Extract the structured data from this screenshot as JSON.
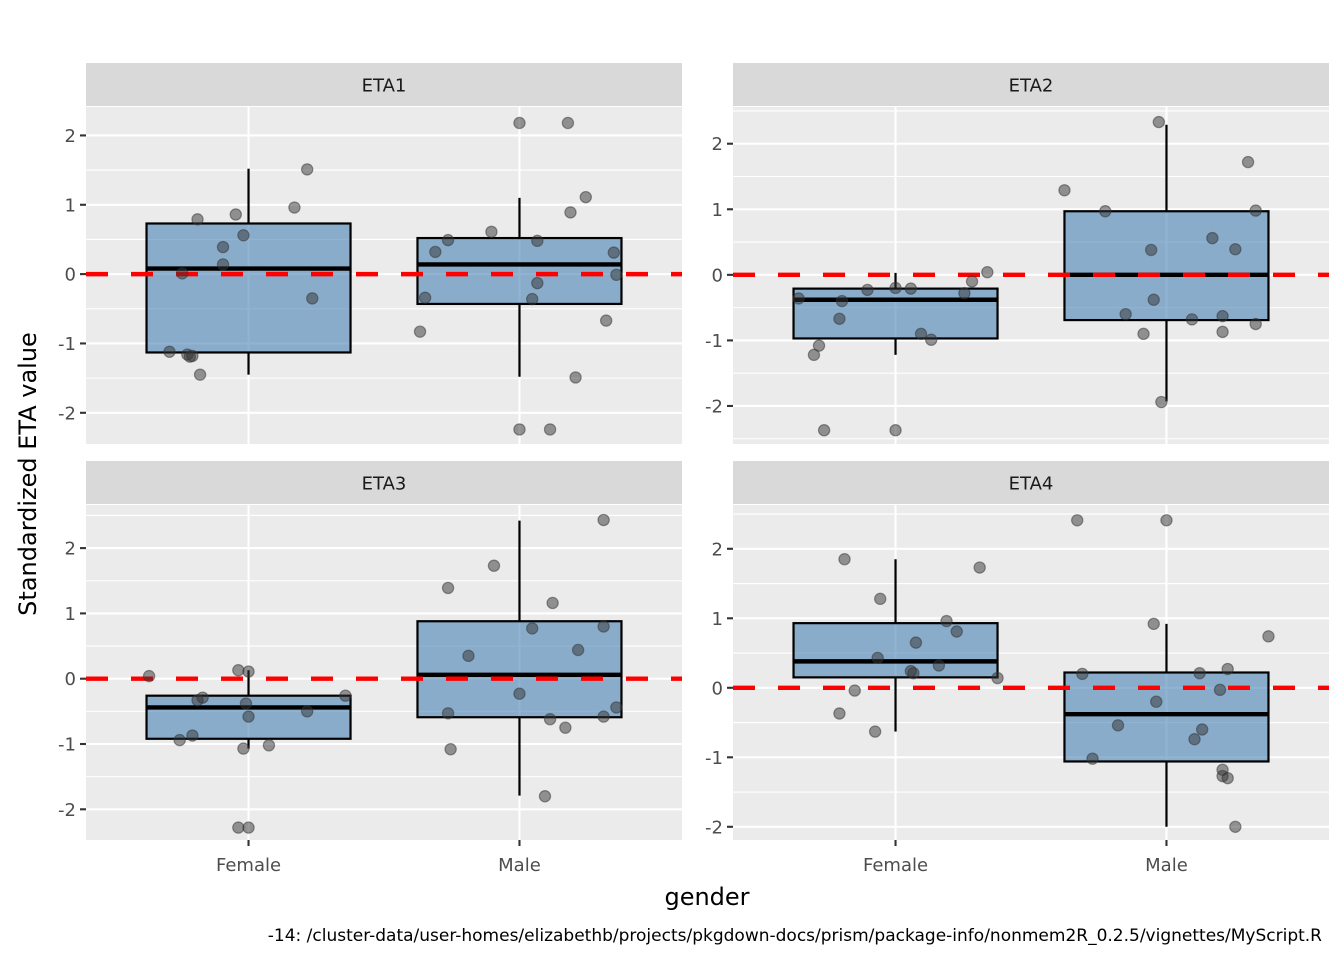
{
  "chart_data": {
    "type": "boxplot",
    "title": "",
    "xlabel": "gender",
    "ylabel": "Standardized ETA value",
    "caption": "-14: /cluster-data/user-homes/elizabethb/projects/pkgdown-docs/prism/package-info/nonmem2R_0.2.5/vignettes/MyScript.R",
    "categories": [
      "Female",
      "Male"
    ],
    "reference_line": {
      "y": 0,
      "color": "#ff0000",
      "style": "dashed"
    },
    "colors": {
      "panel_bg": "#ebebeb",
      "strip_bg": "#d9d9d9",
      "grid": "#ffffff",
      "box_fill": "#4682b4",
      "box_fill_opacity": 0.6,
      "box_stroke": "#000000",
      "point": "#333333",
      "point_opacity": 0.5,
      "ref_line": "#ff0000"
    },
    "facets": [
      {
        "name": "ETA1",
        "ylim": [
          -2.45,
          2.41
        ],
        "yticks": [
          -2,
          -1,
          0,
          1,
          2
        ],
        "groups": [
          {
            "category": "Female",
            "box": {
              "lower_whisker": -1.45,
              "q1": -1.13,
              "median": 0.08,
              "q3": 0.73,
              "upper_whisker": 1.52
            },
            "points": [
              [
                -0.31,
                -1.12
              ],
              [
                -0.26,
                0.01
              ],
              [
                -0.24,
                -1.16
              ],
              [
                -0.23,
                -1.19
              ],
              [
                -0.22,
                -1.18
              ],
              [
                -0.2,
                0.79
              ],
              [
                -0.19,
                -1.45
              ],
              [
                -0.1,
                0.39
              ],
              [
                -0.1,
                0.14
              ],
              [
                -0.05,
                0.86
              ],
              [
                -0.02,
                0.56
              ],
              [
                0.18,
                0.96
              ],
              [
                0.23,
                1.51
              ],
              [
                0.25,
                -0.35
              ]
            ]
          },
          {
            "category": "Male",
            "box": {
              "lower_whisker": -1.48,
              "q1": -0.43,
              "median": 0.14,
              "q3": 0.52,
              "upper_whisker": 1.1
            },
            "points": [
              [
                -0.39,
                -0.83
              ],
              [
                -0.37,
                -0.34
              ],
              [
                -0.33,
                0.32
              ],
              [
                -0.28,
                0.49
              ],
              [
                -0.11,
                0.61
              ],
              [
                0.0,
                2.18
              ],
              [
                0.0,
                -2.24
              ],
              [
                0.05,
                -0.36
              ],
              [
                0.07,
                0.48
              ],
              [
                0.07,
                -0.13
              ],
              [
                0.12,
                -2.24
              ],
              [
                0.19,
                2.18
              ],
              [
                0.2,
                0.89
              ],
              [
                0.22,
                -1.49
              ],
              [
                0.26,
                1.11
              ],
              [
                0.34,
                -0.67
              ],
              [
                0.37,
                0.31
              ],
              [
                0.38,
                -0.01
              ]
            ]
          }
        ]
      },
      {
        "name": "ETA2",
        "ylim": [
          -2.58,
          2.56
        ],
        "yticks": [
          -2,
          -1,
          0,
          1,
          2
        ],
        "groups": [
          {
            "category": "Female",
            "box": {
              "lower_whisker": -1.22,
              "q1": -0.97,
              "median": -0.38,
              "q3": -0.21,
              "upper_whisker": 0.03
            },
            "points": [
              [
                -0.38,
                -0.36
              ],
              [
                -0.32,
                -1.22
              ],
              [
                -0.3,
                -1.08
              ],
              [
                -0.28,
                -2.37
              ],
              [
                -0.22,
                -0.67
              ],
              [
                -0.21,
                -0.4
              ],
              [
                -0.11,
                -0.23
              ],
              [
                0.0,
                -0.2
              ],
              [
                0.0,
                -2.37
              ],
              [
                0.06,
                -0.21
              ],
              [
                0.1,
                -0.9
              ],
              [
                0.14,
                -0.99
              ],
              [
                0.27,
                -0.28
              ],
              [
                0.3,
                -0.1
              ],
              [
                0.36,
                0.04
              ]
            ]
          },
          {
            "category": "Male",
            "box": {
              "lower_whisker": -1.93,
              "q1": -0.69,
              "median": 0.0,
              "q3": 0.97,
              "upper_whisker": 2.29
            },
            "points": [
              [
                -0.4,
                1.29
              ],
              [
                -0.24,
                0.97
              ],
              [
                -0.16,
                -0.6
              ],
              [
                -0.09,
                -0.9
              ],
              [
                -0.06,
                0.38
              ],
              [
                -0.05,
                -0.38
              ],
              [
                -0.03,
                2.33
              ],
              [
                -0.02,
                -1.94
              ],
              [
                0.1,
                -0.68
              ],
              [
                0.18,
                0.56
              ],
              [
                0.22,
                -0.87
              ],
              [
                0.22,
                -0.63
              ],
              [
                0.27,
                0.39
              ],
              [
                0.32,
                1.72
              ],
              [
                0.35,
                0.98
              ],
              [
                0.35,
                -0.75
              ]
            ]
          }
        ]
      },
      {
        "name": "ETA3",
        "ylim": [
          -2.47,
          2.66
        ],
        "yticks": [
          -2,
          -1,
          0,
          1,
          2
        ],
        "groups": [
          {
            "category": "Female",
            "box": {
              "lower_whisker": -1.07,
              "q1": -0.92,
              "median": -0.44,
              "q3": -0.26,
              "upper_whisker": 0.13
            },
            "points": [
              [
                -0.39,
                0.04
              ],
              [
                -0.27,
                -0.94
              ],
              [
                -0.22,
                -0.87
              ],
              [
                -0.2,
                -0.33
              ],
              [
                -0.18,
                -0.29
              ],
              [
                -0.04,
                0.13
              ],
              [
                0.0,
                0.11
              ],
              [
                -0.01,
                -0.38
              ],
              [
                -0.02,
                -1.07
              ],
              [
                0.0,
                -0.58
              ],
              [
                -0.04,
                -2.28
              ],
              [
                0.0,
                -2.28
              ],
              [
                0.08,
                -1.02
              ],
              [
                0.23,
                -0.5
              ],
              [
                0.38,
                -0.26
              ]
            ]
          },
          {
            "category": "Male",
            "box": {
              "lower_whisker": -1.79,
              "q1": -0.59,
              "median": 0.06,
              "q3": 0.88,
              "upper_whisker": 2.42
            },
            "points": [
              [
                -0.28,
                1.39
              ],
              [
                -0.28,
                -0.53
              ],
              [
                -0.27,
                -1.08
              ],
              [
                -0.2,
                0.35
              ],
              [
                -0.1,
                1.73
              ],
              [
                0.0,
                -0.23
              ],
              [
                0.05,
                0.77
              ],
              [
                0.1,
                -1.8
              ],
              [
                0.12,
                -0.62
              ],
              [
                0.13,
                1.16
              ],
              [
                0.18,
                -0.75
              ],
              [
                0.23,
                0.44
              ],
              [
                0.33,
                2.43
              ],
              [
                0.33,
                0.8
              ],
              [
                0.33,
                -0.58
              ],
              [
                0.38,
                -0.44
              ]
            ]
          }
        ]
      },
      {
        "name": "ETA4",
        "ylim": [
          -2.19,
          2.63
        ],
        "yticks": [
          -2,
          -1,
          0,
          1,
          2
        ],
        "groups": [
          {
            "category": "Female",
            "box": {
              "lower_whisker": -0.63,
              "q1": 0.15,
              "median": 0.38,
              "q3": 0.93,
              "upper_whisker": 1.85
            },
            "points": [
              [
                -0.22,
                -0.37
              ],
              [
                -0.2,
                1.85
              ],
              [
                -0.16,
                -0.04
              ],
              [
                -0.07,
                0.43
              ],
              [
                -0.06,
                1.28
              ],
              [
                -0.08,
                -0.63
              ],
              [
                0.06,
                0.24
              ],
              [
                0.07,
                0.21
              ],
              [
                0.08,
                0.65
              ],
              [
                0.17,
                0.32
              ],
              [
                0.2,
                0.96
              ],
              [
                0.24,
                0.81
              ],
              [
                0.33,
                1.73
              ],
              [
                0.4,
                0.14
              ]
            ]
          },
          {
            "category": "Male",
            "box": {
              "lower_whisker": -2.0,
              "q1": -1.06,
              "median": -0.38,
              "q3": 0.22,
              "upper_whisker": 0.92
            },
            "points": [
              [
                -0.35,
                2.41
              ],
              [
                -0.33,
                0.2
              ],
              [
                -0.29,
                -1.02
              ],
              [
                -0.19,
                -0.54
              ],
              [
                -0.05,
                0.92
              ],
              [
                -0.04,
                -0.2
              ],
              [
                0.0,
                2.41
              ],
              [
                0.11,
                -0.74
              ],
              [
                0.13,
                0.21
              ],
              [
                0.14,
                -0.6
              ],
              [
                0.21,
                -0.03
              ],
              [
                0.22,
                -1.18
              ],
              [
                0.22,
                -1.27
              ],
              [
                0.24,
                0.27
              ],
              [
                0.24,
                -1.3
              ],
              [
                0.27,
                -2.0
              ],
              [
                0.4,
                0.74
              ]
            ]
          }
        ]
      }
    ]
  }
}
